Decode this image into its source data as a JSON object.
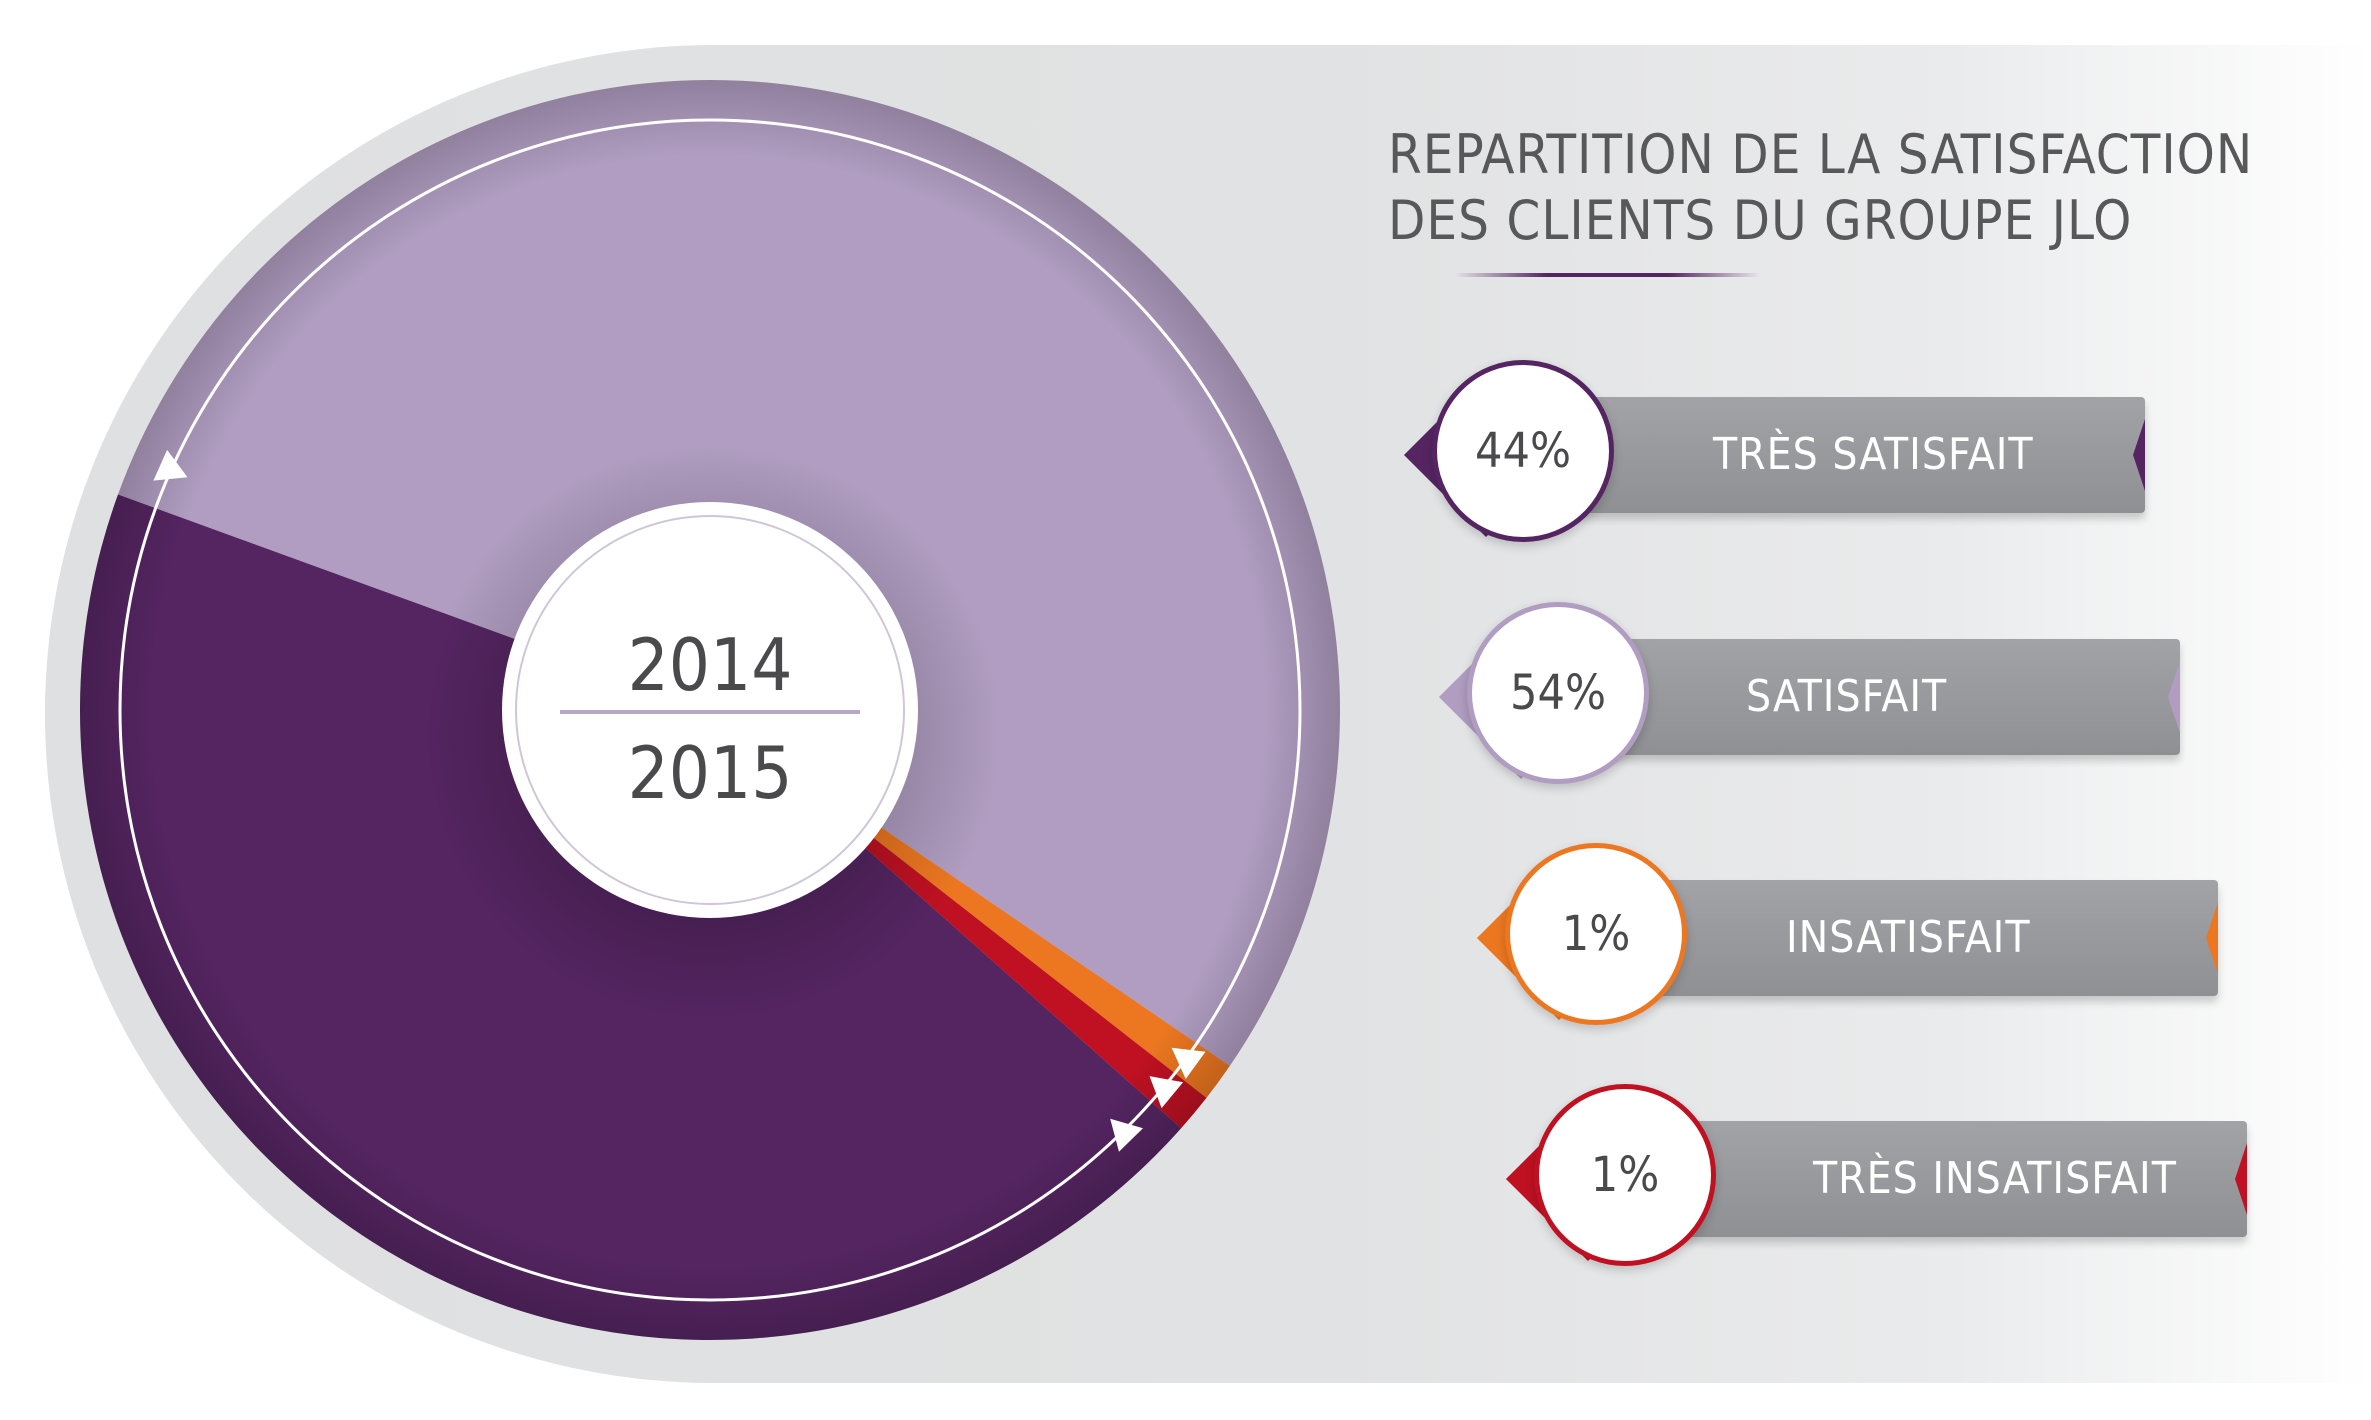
{
  "chart_data": {
    "type": "pie",
    "title": "REPARTITION DE LA SATISFACTION DES CLIENTS DU GROUPE JLO",
    "title_lines": [
      "REPARTITION DE LA SATISFACTION",
      "DES CLIENTS DU GROUPE JLO"
    ],
    "center_label": {
      "top": "2014",
      "bottom": "2015"
    },
    "categories": [
      "TRÈS SATISFAIT",
      "SATISFAIT",
      "INSATISFAIT",
      "TRÈS INSATISFAIT"
    ],
    "values": [
      44,
      54,
      1,
      1
    ],
    "value_labels": [
      "44%",
      "54%",
      "1%",
      "1%"
    ],
    "colors": [
      "#552562",
      "#b09dc1",
      "#ec7720",
      "#bf1122"
    ],
    "legend_position": "right"
  },
  "colors": {
    "background_panel": "#e1e2e3",
    "label_bar": "#9a9b9e",
    "text_dark": "#58585a"
  }
}
